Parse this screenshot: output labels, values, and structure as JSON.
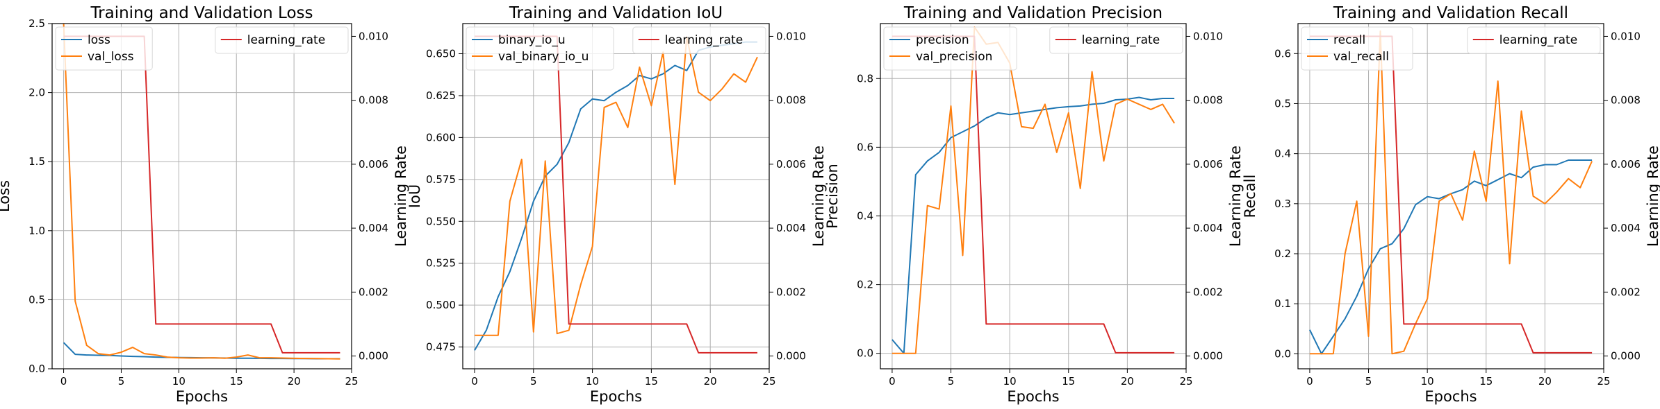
{
  "chart_data": [
    {
      "type": "line",
      "title": "Training and Validation Loss",
      "xlabel": "Epochs",
      "ylabel": "Loss",
      "y2label": "Learning Rate",
      "xlim": [
        -1,
        25
      ],
      "ylim": [
        0,
        2.5
      ],
      "y2lim": [
        -0.0004,
        0.0104
      ],
      "xticks": [
        0,
        5,
        10,
        15,
        20,
        25
      ],
      "yticks": [
        0.0,
        0.5,
        1.0,
        1.5,
        2.0,
        2.5
      ],
      "yticklabels": [
        "0.0",
        "0.5",
        "1.0",
        "1.5",
        "2.0",
        "2.5"
      ],
      "y2ticks": [
        0.0,
        0.002,
        0.004,
        0.006,
        0.008,
        0.01
      ],
      "y2ticklabels": [
        "0.000",
        "0.002",
        "0.004",
        "0.006",
        "0.008",
        "0.010"
      ],
      "grid": true,
      "legend_left": "top-left",
      "legend_right": "top-right",
      "x": [
        0,
        1,
        2,
        3,
        4,
        5,
        6,
        7,
        8,
        9,
        10,
        11,
        12,
        13,
        14,
        15,
        16,
        17,
        18,
        19,
        20,
        21,
        22,
        23,
        24
      ],
      "series": [
        {
          "name": "loss",
          "color": "#1f77b4",
          "axis": "left",
          "values": [
            0.19,
            0.105,
            0.1,
            0.098,
            0.097,
            0.093,
            0.09,
            0.088,
            0.085,
            0.083,
            0.082,
            0.081,
            0.08,
            0.079,
            0.078,
            0.077,
            0.077,
            0.076,
            0.075,
            0.075,
            0.074,
            0.074,
            0.073,
            0.073,
            0.073
          ]
        },
        {
          "name": "val_loss",
          "color": "#ff7f0e",
          "axis": "left",
          "values": [
            2.5,
            0.49,
            0.17,
            0.11,
            0.1,
            0.12,
            0.155,
            0.11,
            0.1,
            0.085,
            0.08,
            0.078,
            0.078,
            0.08,
            0.077,
            0.085,
            0.1,
            0.08,
            0.08,
            0.078,
            0.076,
            0.075,
            0.074,
            0.073,
            0.072
          ]
        },
        {
          "name": "learning_rate",
          "color": "#d62728",
          "axis": "right",
          "values": [
            0.01,
            0.01,
            0.01,
            0.01,
            0.01,
            0.01,
            0.01,
            0.01,
            0.001,
            0.001,
            0.001,
            0.001,
            0.001,
            0.001,
            0.001,
            0.001,
            0.001,
            0.001,
            0.001,
            0.0001,
            0.0001,
            0.0001,
            0.0001,
            0.0001,
            0.0001
          ]
        }
      ]
    },
    {
      "type": "line",
      "title": "Training and Validation IoU",
      "xlabel": "Epochs",
      "ylabel": "IoU",
      "y2label": "Learning Rate",
      "xlim": [
        -1,
        25
      ],
      "ylim": [
        0.462,
        0.668
      ],
      "y2lim": [
        -0.0004,
        0.0104
      ],
      "xticks": [
        0,
        5,
        10,
        15,
        20,
        25
      ],
      "yticks": [
        0.475,
        0.5,
        0.525,
        0.55,
        0.575,
        0.6,
        0.625,
        0.65
      ],
      "yticklabels": [
        "0.475",
        "0.500",
        "0.525",
        "0.550",
        "0.575",
        "0.600",
        "0.625",
        "0.650"
      ],
      "y2ticks": [
        0.0,
        0.002,
        0.004,
        0.006,
        0.008,
        0.01
      ],
      "y2ticklabels": [
        "0.000",
        "0.002",
        "0.004",
        "0.006",
        "0.008",
        "0.010"
      ],
      "grid": true,
      "legend_left": "top-left",
      "legend_right": "top-right",
      "x": [
        0,
        1,
        2,
        3,
        4,
        5,
        6,
        7,
        8,
        9,
        10,
        11,
        12,
        13,
        14,
        15,
        16,
        17,
        18,
        19,
        20,
        21,
        22,
        23,
        24
      ],
      "series": [
        {
          "name": "binary_io_u",
          "color": "#1f77b4",
          "axis": "left",
          "values": [
            0.473,
            0.485,
            0.505,
            0.52,
            0.54,
            0.562,
            0.577,
            0.584,
            0.597,
            0.617,
            0.623,
            0.622,
            0.627,
            0.631,
            0.637,
            0.635,
            0.638,
            0.643,
            0.64,
            0.652,
            0.654,
            0.655,
            0.656,
            0.657,
            0.657
          ]
        },
        {
          "name": "val_binary_io_u",
          "color": "#ff7f0e",
          "axis": "left",
          "values": [
            0.482,
            0.482,
            0.482,
            0.562,
            0.587,
            0.484,
            0.586,
            0.483,
            0.485,
            0.512,
            0.535,
            0.618,
            0.621,
            0.606,
            0.642,
            0.619,
            0.651,
            0.572,
            0.66,
            0.627,
            0.622,
            0.629,
            0.638,
            0.633,
            0.648
          ]
        },
        {
          "name": "learning_rate",
          "color": "#d62728",
          "axis": "right",
          "values": [
            0.01,
            0.01,
            0.01,
            0.01,
            0.01,
            0.01,
            0.01,
            0.01,
            0.001,
            0.001,
            0.001,
            0.001,
            0.001,
            0.001,
            0.001,
            0.001,
            0.001,
            0.001,
            0.001,
            0.0001,
            0.0001,
            0.0001,
            0.0001,
            0.0001,
            0.0001
          ]
        }
      ]
    },
    {
      "type": "line",
      "title": "Training and Validation Precision",
      "xlabel": "Epochs",
      "ylabel": "Precision",
      "y2label": "Learning Rate",
      "xlim": [
        -1,
        25
      ],
      "ylim": [
        -0.045,
        0.96
      ],
      "y2lim": [
        -0.0004,
        0.0104
      ],
      "xticks": [
        0,
        5,
        10,
        15,
        20,
        25
      ],
      "yticks": [
        0.0,
        0.2,
        0.4,
        0.6,
        0.8
      ],
      "yticklabels": [
        "0.0",
        "0.2",
        "0.4",
        "0.6",
        "0.8"
      ],
      "y2ticks": [
        0.0,
        0.002,
        0.004,
        0.006,
        0.008,
        0.01
      ],
      "y2ticklabels": [
        "0.000",
        "0.002",
        "0.004",
        "0.006",
        "0.008",
        "0.010"
      ],
      "grid": true,
      "legend_left": "top-left",
      "legend_right": "top-right",
      "x": [
        0,
        1,
        2,
        3,
        4,
        5,
        6,
        7,
        8,
        9,
        10,
        11,
        12,
        13,
        14,
        15,
        16,
        17,
        18,
        19,
        20,
        21,
        22,
        23,
        24
      ],
      "series": [
        {
          "name": "precision",
          "color": "#1f77b4",
          "axis": "left",
          "values": [
            0.04,
            0.0,
            0.52,
            0.56,
            0.585,
            0.628,
            0.645,
            0.662,
            0.685,
            0.7,
            0.695,
            0.7,
            0.705,
            0.71,
            0.715,
            0.718,
            0.72,
            0.725,
            0.728,
            0.738,
            0.74,
            0.745,
            0.738,
            0.742,
            0.742
          ]
        },
        {
          "name": "val_precision",
          "color": "#ff7f0e",
          "axis": "left",
          "values": [
            0.0,
            0.0,
            0.0,
            0.43,
            0.42,
            0.72,
            0.285,
            0.95,
            0.9,
            0.905,
            0.845,
            0.66,
            0.655,
            0.725,
            0.585,
            0.7,
            0.48,
            0.82,
            0.56,
            0.725,
            0.74,
            0.725,
            0.71,
            0.725,
            0.67
          ]
        },
        {
          "name": "learning_rate",
          "color": "#d62728",
          "axis": "right",
          "values": [
            0.01,
            0.01,
            0.01,
            0.01,
            0.01,
            0.01,
            0.01,
            0.01,
            0.001,
            0.001,
            0.001,
            0.001,
            0.001,
            0.001,
            0.001,
            0.001,
            0.001,
            0.001,
            0.001,
            0.0001,
            0.0001,
            0.0001,
            0.0001,
            0.0001,
            0.0001
          ]
        }
      ]
    },
    {
      "type": "line",
      "title": "Training and Validation Recall",
      "xlabel": "Epochs",
      "ylabel": "Recall",
      "y2label": "Learning Rate",
      "xlim": [
        -1,
        25
      ],
      "ylim": [
        -0.03,
        0.66
      ],
      "y2lim": [
        -0.0004,
        0.0104
      ],
      "xticks": [
        0,
        5,
        10,
        15,
        20,
        25
      ],
      "yticks": [
        0.0,
        0.1,
        0.2,
        0.3,
        0.4,
        0.5,
        0.6
      ],
      "yticklabels": [
        "0.0",
        "0.1",
        "0.2",
        "0.3",
        "0.4",
        "0.5",
        "0.6"
      ],
      "y2ticks": [
        0.0,
        0.002,
        0.004,
        0.006,
        0.008,
        0.01
      ],
      "y2ticklabels": [
        "0.000",
        "0.002",
        "0.004",
        "0.006",
        "0.008",
        "0.010"
      ],
      "grid": true,
      "legend_left": "top-left",
      "legend_right": "top-right",
      "x": [
        0,
        1,
        2,
        3,
        4,
        5,
        6,
        7,
        8,
        9,
        10,
        11,
        12,
        13,
        14,
        15,
        16,
        17,
        18,
        19,
        20,
        21,
        22,
        23,
        24
      ],
      "series": [
        {
          "name": "recall",
          "color": "#1f77b4",
          "axis": "left",
          "values": [
            0.048,
            0.0,
            0.035,
            0.07,
            0.115,
            0.17,
            0.21,
            0.22,
            0.25,
            0.298,
            0.314,
            0.31,
            0.32,
            0.328,
            0.345,
            0.336,
            0.348,
            0.36,
            0.352,
            0.373,
            0.378,
            0.378,
            0.387,
            0.387,
            0.387
          ]
        },
        {
          "name": "val_recall",
          "color": "#ff7f0e",
          "axis": "left",
          "values": [
            0.0,
            0.0,
            0.0,
            0.2,
            0.305,
            0.035,
            0.645,
            0.0,
            0.005,
            0.06,
            0.11,
            0.305,
            0.32,
            0.267,
            0.405,
            0.305,
            0.545,
            0.18,
            0.485,
            0.315,
            0.3,
            0.323,
            0.35,
            0.332,
            0.385
          ]
        },
        {
          "name": "learning_rate",
          "color": "#d62728",
          "axis": "right",
          "values": [
            0.01,
            0.01,
            0.01,
            0.01,
            0.01,
            0.01,
            0.01,
            0.01,
            0.001,
            0.001,
            0.001,
            0.001,
            0.001,
            0.001,
            0.001,
            0.001,
            0.001,
            0.001,
            0.001,
            0.0001,
            0.0001,
            0.0001,
            0.0001,
            0.0001,
            0.0001
          ]
        }
      ]
    }
  ]
}
